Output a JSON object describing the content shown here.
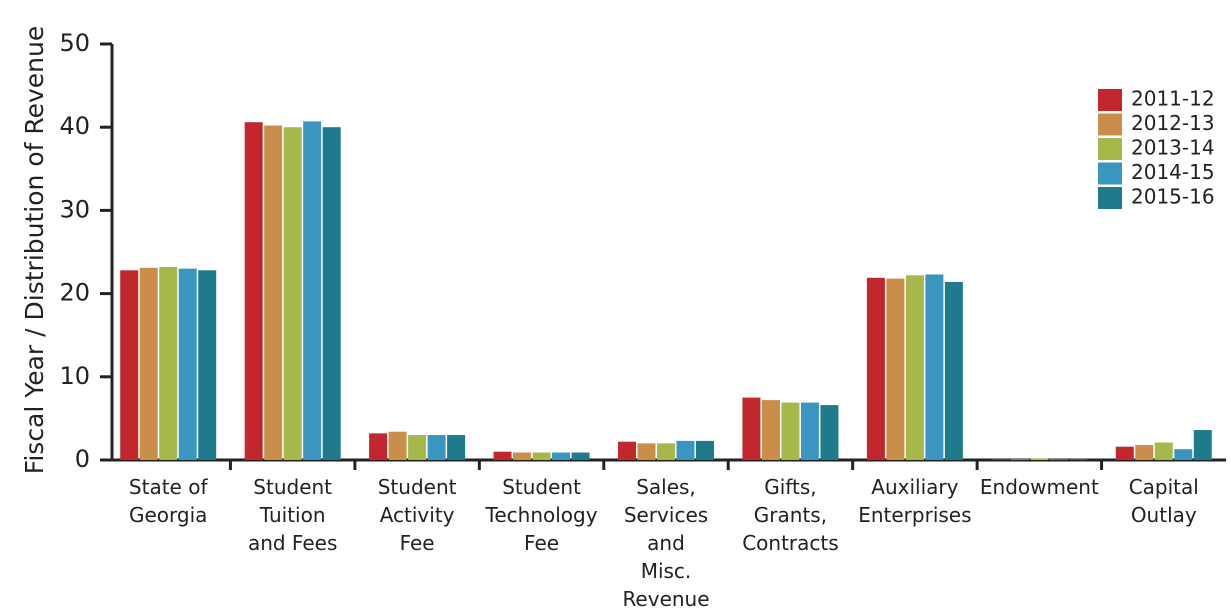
{
  "chart_data": {
    "type": "bar",
    "y_label": "Fiscal Year / Distribution of Revenue",
    "categories": [
      "State of\nGeorgia",
      "Student\nTuition\nand Fees",
      "Student\nActivity\nFee",
      "Student\nTechnology\nFee",
      "Sales,\nServices\nand\nMisc.\nRevenue",
      "Gifts,\nGrants,\nContracts",
      "Auxiliary\nEnterprises",
      "Endowment",
      "Capital\nOutlay"
    ],
    "series": [
      {
        "name": "2011-12",
        "color": "#c1272d",
        "values": [
          22.8,
          40.6,
          3.2,
          1.0,
          2.2,
          7.5,
          21.9,
          0.1,
          1.6
        ]
      },
      {
        "name": "2012-13",
        "color": "#c98f4a",
        "values": [
          23.1,
          40.2,
          3.4,
          0.9,
          2.0,
          7.2,
          21.8,
          0.1,
          1.8
        ]
      },
      {
        "name": "2013-14",
        "color": "#a6b84a",
        "values": [
          23.2,
          40.0,
          3.0,
          0.9,
          2.0,
          6.9,
          22.2,
          0.2,
          2.1
        ]
      },
      {
        "name": "2014-15",
        "color": "#3a96c0",
        "values": [
          23.0,
          40.7,
          3.0,
          0.9,
          2.3,
          6.9,
          22.3,
          0.1,
          1.3
        ]
      },
      {
        "name": "2015-16",
        "color": "#1f7a8c",
        "values": [
          22.8,
          40.0,
          3.0,
          0.9,
          2.3,
          6.6,
          21.4,
          0.1,
          3.6
        ]
      }
    ],
    "ylim": [
      0,
      50
    ],
    "yticks": [
      0,
      10,
      20,
      30,
      40,
      50
    ],
    "legend": "top-right"
  }
}
